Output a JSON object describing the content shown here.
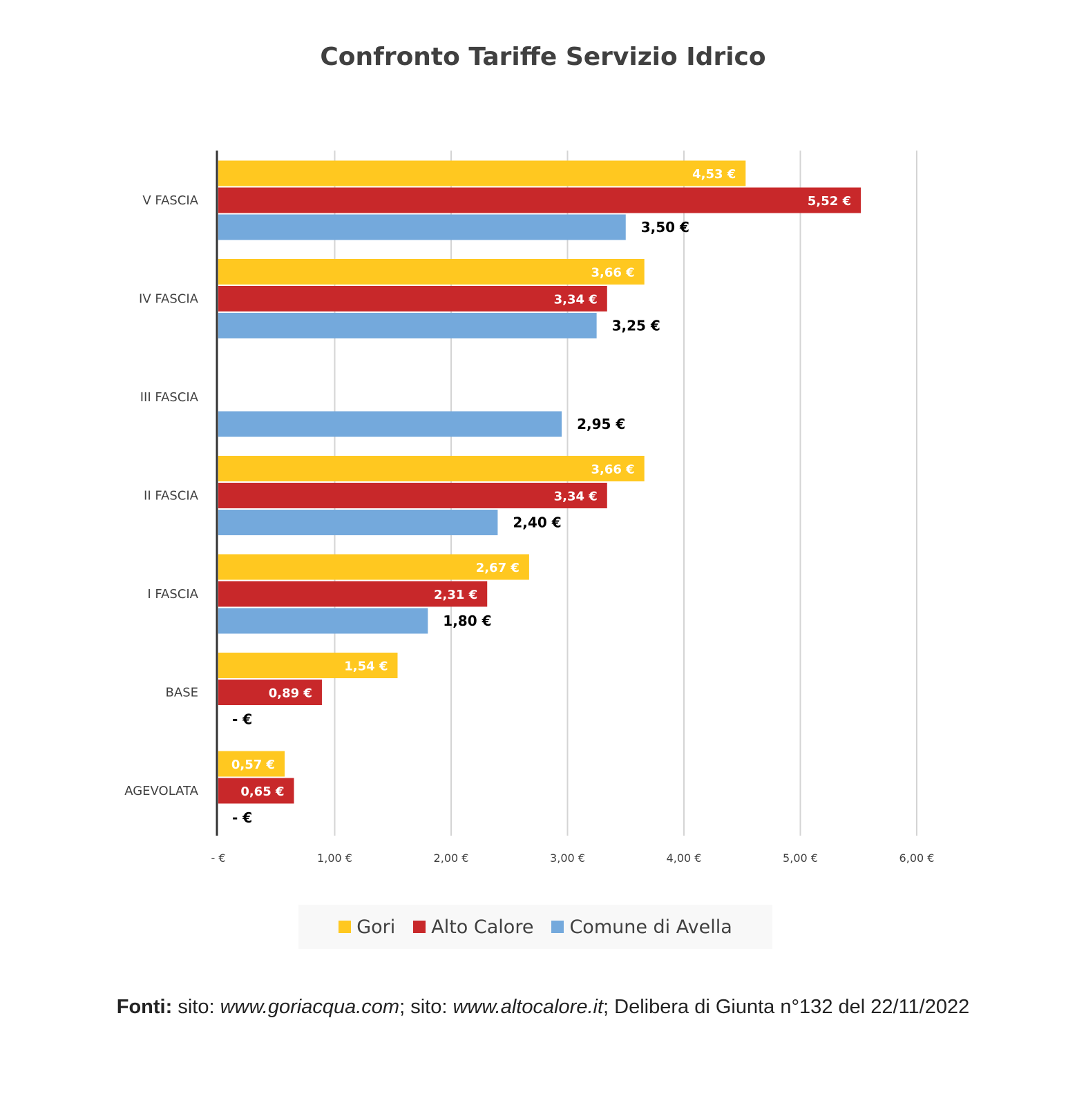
{
  "chart_data": {
    "type": "bar",
    "orientation": "horizontal",
    "title": "Confronto Tariffe Servizio Idrico",
    "categories": [
      "V FASCIA",
      "IV FASCIA",
      "III FASCIA",
      "II FASCIA",
      "I FASCIA",
      "BASE",
      "AGEVOLATA"
    ],
    "series": [
      {
        "name": "Gori",
        "color": "#FFC820",
        "values": [
          4.53,
          3.66,
          null,
          3.66,
          2.67,
          1.54,
          0.57
        ],
        "labels": [
          "4,53 €",
          "3,66 €",
          "",
          "3,66 €",
          "2,67 €",
          "1,54 €",
          "0,57 €"
        ]
      },
      {
        "name": "Alto Calore",
        "color": "#C8282A",
        "values": [
          5.52,
          3.34,
          null,
          3.34,
          2.31,
          0.89,
          0.65
        ],
        "labels": [
          "5,52 €",
          "3,34 €",
          "",
          "3,34 €",
          "2,31 €",
          "0,89 €",
          "0,65 €"
        ]
      },
      {
        "name": "Comune di Avella",
        "color": "#74A9DC",
        "values": [
          3.5,
          3.25,
          2.95,
          2.4,
          1.8,
          0,
          0
        ],
        "labels": [
          "3,50 €",
          "3,25 €",
          "2,95 €",
          "2,40 €",
          "1,80 €",
          "-   €",
          "-   €"
        ]
      }
    ],
    "xlim": [
      0,
      6
    ],
    "xticks": [
      0,
      1,
      2,
      3,
      4,
      5,
      6
    ],
    "xtick_labels": [
      "-   €",
      "1,00 €",
      "2,00 €",
      "3,00 €",
      "4,00 €",
      "5,00 €",
      "6,00 €"
    ],
    "xlabel": "",
    "ylabel": "",
    "grid": "vertical",
    "legend": "bottom"
  },
  "footer": {
    "label": "Fonti:",
    "text1": " sito: ",
    "site1": "www.goriacqua.com",
    "text2": "; sito: ",
    "site2": "www.altocalore.it",
    "text3": "; Delibera di Giunta n°132 del 22/11/2022"
  }
}
